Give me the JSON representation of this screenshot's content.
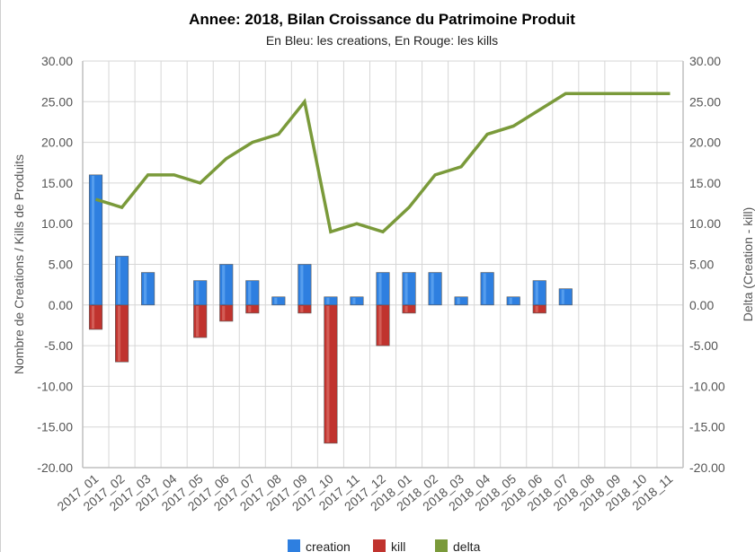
{
  "colors": {
    "creation": "#2e7fe0",
    "kill": "#c0332e",
    "delta": "#7a9a3a",
    "grid": "#d6d6d6",
    "axis": "#bfbfbf",
    "text": "#555555"
  },
  "chart_data": {
    "type": "bar",
    "title": "Annee: 2018, Bilan Croissance du Patrimoine Produit",
    "subtitle": "En Bleu: les creations, En Rouge: les kills",
    "ylabel": "Nombre de Creations / Kills de Produits",
    "y2label": "Delta (Creation - kill)",
    "ylim": [
      -20,
      30
    ],
    "yticks": [
      "30.00",
      "25.00",
      "20.00",
      "15.00",
      "10.00",
      "5.00",
      "0.00",
      "-5.00",
      "-10.00",
      "-15.00",
      "-20.00"
    ],
    "ytick_values": [
      30,
      25,
      20,
      15,
      10,
      5,
      0,
      -5,
      -10,
      -15,
      -20
    ],
    "grid": true,
    "legend_position": "bottom",
    "categories": [
      "2017_01",
      "2017_02",
      "2017_03",
      "2017_04",
      "2017_05",
      "2017_06",
      "2017_07",
      "2017_08",
      "2017_09",
      "2017_10",
      "2017_11",
      "2017_12",
      "2018_01",
      "2018_02",
      "2018_03",
      "2018_04",
      "2018_05",
      "2018_06",
      "2018_07",
      "2018_08",
      "2018_09",
      "2018_10",
      "2018_11"
    ],
    "series": [
      {
        "name": "creation",
        "kind": "bar",
        "values": [
          16,
          6,
          4,
          0,
          3,
          5,
          3,
          1,
          5,
          1,
          1,
          4,
          4,
          4,
          1,
          4,
          1,
          3,
          2,
          0,
          0,
          0,
          0
        ]
      },
      {
        "name": "kill",
        "kind": "bar",
        "values": [
          -3,
          -7,
          0,
          0,
          -4,
          -2,
          -1,
          0,
          -1,
          -17,
          0,
          -5,
          -1,
          0,
          0,
          0,
          0,
          -1,
          0,
          0,
          0,
          0,
          0
        ]
      },
      {
        "name": "delta",
        "kind": "line",
        "values": [
          13,
          12,
          16,
          16,
          15,
          18,
          20,
          21,
          25,
          9,
          10,
          9,
          12,
          16,
          17,
          21,
          22,
          24,
          26,
          26,
          26,
          26,
          26
        ]
      }
    ]
  }
}
